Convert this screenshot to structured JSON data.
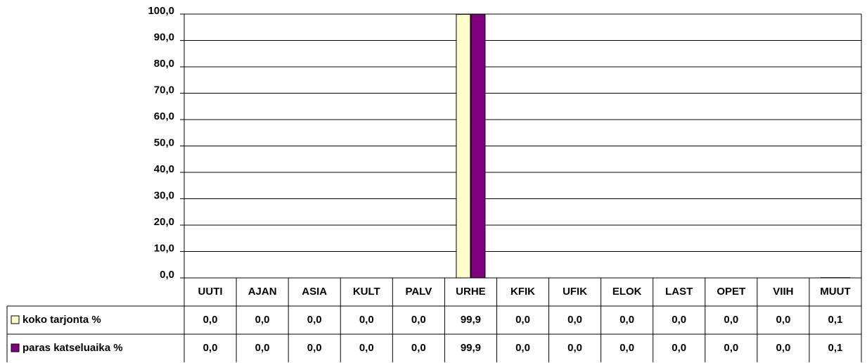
{
  "chart_data": {
    "type": "bar",
    "categories": [
      "UUTI",
      "AJAN",
      "ASIA",
      "KULT",
      "PALV",
      "URHE",
      "KFIK",
      "UFIK",
      "ELOK",
      "LAST",
      "OPET",
      "VIIH",
      "MUUT"
    ],
    "series": [
      {
        "name": "koko tarjonta %",
        "color": "#ffffcc",
        "values": [
          0,
          0,
          0,
          0,
          0,
          99.9,
          0,
          0,
          0,
          0,
          0,
          0,
          0.1
        ],
        "value_labels": [
          "0,0",
          "0,0",
          "0,0",
          "0,0",
          "0,0",
          "99,9",
          "0,0",
          "0,0",
          "0,0",
          "0,0",
          "0,0",
          "0,0",
          "0,1"
        ]
      },
      {
        "name": "paras katseluaika %",
        "color": "#800080",
        "values": [
          0,
          0,
          0,
          0,
          0,
          99.9,
          0,
          0,
          0,
          0,
          0,
          0,
          0.1
        ],
        "value_labels": [
          "0,0",
          "0,0",
          "0,0",
          "0,0",
          "0,0",
          "99,9",
          "0,0",
          "0,0",
          "0,0",
          "0,0",
          "0,0",
          "0,0",
          "0,1"
        ]
      }
    ],
    "ylim": [
      0,
      100
    ],
    "yticks": [
      {
        "value": 0,
        "label": "0,0"
      },
      {
        "value": 10,
        "label": "10,0"
      },
      {
        "value": 20,
        "label": "20,0"
      },
      {
        "value": 30,
        "label": "30,0"
      },
      {
        "value": 40,
        "label": "40,0"
      },
      {
        "value": 50,
        "label": "50,0"
      },
      {
        "value": 60,
        "label": "60,0"
      },
      {
        "value": 70,
        "label": "70,0"
      },
      {
        "value": 80,
        "label": "80,0"
      },
      {
        "value": 90,
        "label": "90,0"
      },
      {
        "value": 100,
        "label": "100,0"
      }
    ],
    "grid": true
  }
}
